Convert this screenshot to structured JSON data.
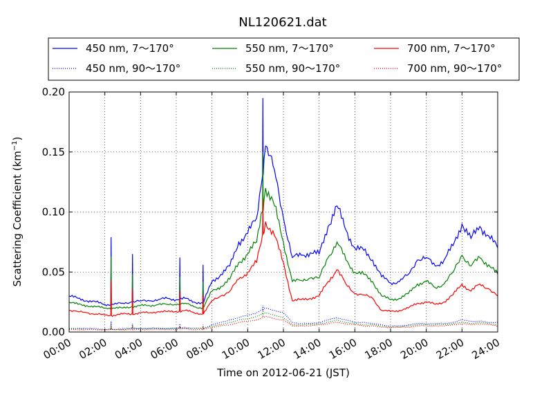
{
  "chart_data": {
    "type": "line",
    "title": "NL120621.dat",
    "xlabel": "Time on 2012-06-21 (JST)",
    "ylabel_main": "Scattering Coefficient (km",
    "ylabel_sup": "−1",
    "ylabel_close": ")",
    "xlim": [
      0,
      24
    ],
    "ylim": [
      0,
      0.2
    ],
    "grid": true,
    "legend_position": "top",
    "x_ticks": [
      0,
      2,
      4,
      6,
      8,
      10,
      12,
      14,
      16,
      18,
      20,
      22,
      24
    ],
    "x_tick_labels": [
      "00:00",
      "02:00",
      "04:00",
      "06:00",
      "08:00",
      "10:00",
      "12:00",
      "14:00",
      "16:00",
      "18:00",
      "20:00",
      "22:00",
      "24:00"
    ],
    "y_ticks": [
      0,
      0.05,
      0.1,
      0.15,
      0.2
    ],
    "y_tick_labels": [
      "0.00",
      "0.05",
      "0.10",
      "0.15",
      "0.20"
    ],
    "x": [
      0,
      0.5,
      1,
      1.5,
      2,
      2.5,
      3,
      3.5,
      4,
      4.5,
      5,
      5.5,
      6,
      6.5,
      7,
      7.5,
      8,
      8.5,
      9,
      9.5,
      10,
      10.5,
      11,
      11.5,
      12,
      12.5,
      13,
      13.5,
      14,
      14.5,
      15,
      15.5,
      16,
      16.5,
      17,
      17.5,
      18,
      18.5,
      19,
      19.5,
      20,
      20.5,
      21,
      21.5,
      22,
      22.5,
      23,
      23.5,
      24
    ],
    "series": [
      {
        "name": "450 nm, 7～170°",
        "color": "#0000ff",
        "style": "solid",
        "values": [
          0.03,
          0.028,
          0.026,
          0.025,
          0.023,
          0.023,
          0.024,
          0.025,
          0.026,
          0.026,
          0.027,
          0.028,
          0.027,
          0.028,
          0.025,
          0.024,
          0.042,
          0.048,
          0.055,
          0.075,
          0.082,
          0.095,
          0.155,
          0.135,
          0.095,
          0.062,
          0.064,
          0.066,
          0.065,
          0.088,
          0.105,
          0.085,
          0.07,
          0.068,
          0.06,
          0.046,
          0.041,
          0.042,
          0.048,
          0.06,
          0.062,
          0.055,
          0.06,
          0.072,
          0.09,
          0.078,
          0.088,
          0.08,
          0.07
        ]
      },
      {
        "name": "450 nm, 90～170°",
        "color": "#0000ff",
        "style": "dotted",
        "values": [
          0.003,
          0.003,
          0.003,
          0.003,
          0.002,
          0.002,
          0.003,
          0.003,
          0.003,
          0.003,
          0.003,
          0.003,
          0.003,
          0.004,
          0.003,
          0.003,
          0.006,
          0.008,
          0.01,
          0.012,
          0.014,
          0.016,
          0.02,
          0.018,
          0.016,
          0.008,
          0.007,
          0.007,
          0.008,
          0.01,
          0.012,
          0.01,
          0.008,
          0.008,
          0.007,
          0.006,
          0.005,
          0.005,
          0.006,
          0.007,
          0.007,
          0.007,
          0.007,
          0.008,
          0.01,
          0.009,
          0.009,
          0.008,
          0.008
        ]
      },
      {
        "name": "550 nm, 7～170°",
        "color": "#008000",
        "style": "solid",
        "values": [
          0.025,
          0.023,
          0.022,
          0.021,
          0.02,
          0.02,
          0.02,
          0.021,
          0.022,
          0.022,
          0.023,
          0.023,
          0.023,
          0.024,
          0.021,
          0.02,
          0.034,
          0.038,
          0.044,
          0.058,
          0.065,
          0.075,
          0.12,
          0.105,
          0.075,
          0.042,
          0.043,
          0.045,
          0.045,
          0.062,
          0.075,
          0.06,
          0.05,
          0.048,
          0.042,
          0.03,
          0.027,
          0.028,
          0.032,
          0.04,
          0.042,
          0.037,
          0.04,
          0.05,
          0.064,
          0.055,
          0.062,
          0.056,
          0.048
        ]
      },
      {
        "name": "550 nm, 90～170°",
        "color": "#008000",
        "style": "dotted",
        "values": [
          0.003,
          0.003,
          0.002,
          0.002,
          0.002,
          0.002,
          0.002,
          0.003,
          0.003,
          0.003,
          0.003,
          0.003,
          0.003,
          0.003,
          0.003,
          0.003,
          0.005,
          0.006,
          0.008,
          0.01,
          0.011,
          0.013,
          0.016,
          0.014,
          0.012,
          0.006,
          0.006,
          0.006,
          0.007,
          0.008,
          0.01,
          0.008,
          0.007,
          0.006,
          0.006,
          0.005,
          0.004,
          0.004,
          0.005,
          0.006,
          0.006,
          0.006,
          0.006,
          0.007,
          0.008,
          0.007,
          0.008,
          0.007,
          0.006
        ]
      },
      {
        "name": "700 nm, 7～170°",
        "color": "#ff0000",
        "style": "solid",
        "values": [
          0.018,
          0.017,
          0.016,
          0.015,
          0.014,
          0.014,
          0.015,
          0.015,
          0.016,
          0.016,
          0.017,
          0.017,
          0.017,
          0.018,
          0.016,
          0.015,
          0.026,
          0.03,
          0.034,
          0.044,
          0.05,
          0.058,
          0.092,
          0.08,
          0.058,
          0.026,
          0.027,
          0.028,
          0.03,
          0.042,
          0.052,
          0.04,
          0.032,
          0.031,
          0.028,
          0.018,
          0.017,
          0.018,
          0.02,
          0.024,
          0.025,
          0.023,
          0.025,
          0.031,
          0.04,
          0.034,
          0.04,
          0.036,
          0.03
        ]
      },
      {
        "name": "700 nm, 90～170°",
        "color": "#ff0000",
        "style": "dotted",
        "values": [
          0.002,
          0.002,
          0.002,
          0.002,
          0.002,
          0.002,
          0.002,
          0.002,
          0.002,
          0.002,
          0.002,
          0.002,
          0.002,
          0.003,
          0.002,
          0.002,
          0.004,
          0.005,
          0.006,
          0.008,
          0.009,
          0.01,
          0.013,
          0.011,
          0.01,
          0.005,
          0.005,
          0.005,
          0.006,
          0.007,
          0.008,
          0.007,
          0.006,
          0.005,
          0.005,
          0.004,
          0.004,
          0.004,
          0.004,
          0.005,
          0.005,
          0.005,
          0.005,
          0.006,
          0.007,
          0.006,
          0.007,
          0.006,
          0.005
        ]
      }
    ],
    "spikes": [
      {
        "x": 2.35,
        "values": [
          0.079,
          0.009,
          0.063,
          0.007,
          0.043,
          0.005
        ]
      },
      {
        "x": 3.55,
        "values": [
          0.065,
          0.007,
          0.048,
          0.006,
          0.036,
          0.004
        ]
      },
      {
        "x": 6.2,
        "values": [
          0.062,
          0.007,
          0.046,
          0.005,
          0.034,
          0.004
        ]
      },
      {
        "x": 7.5,
        "values": [
          0.056,
          0.006,
          0.042,
          0.005,
          0.031,
          0.004
        ]
      },
      {
        "x": 10.85,
        "values": [
          0.195,
          0.022,
          0.15,
          0.018,
          0.11,
          0.014
        ]
      }
    ]
  }
}
